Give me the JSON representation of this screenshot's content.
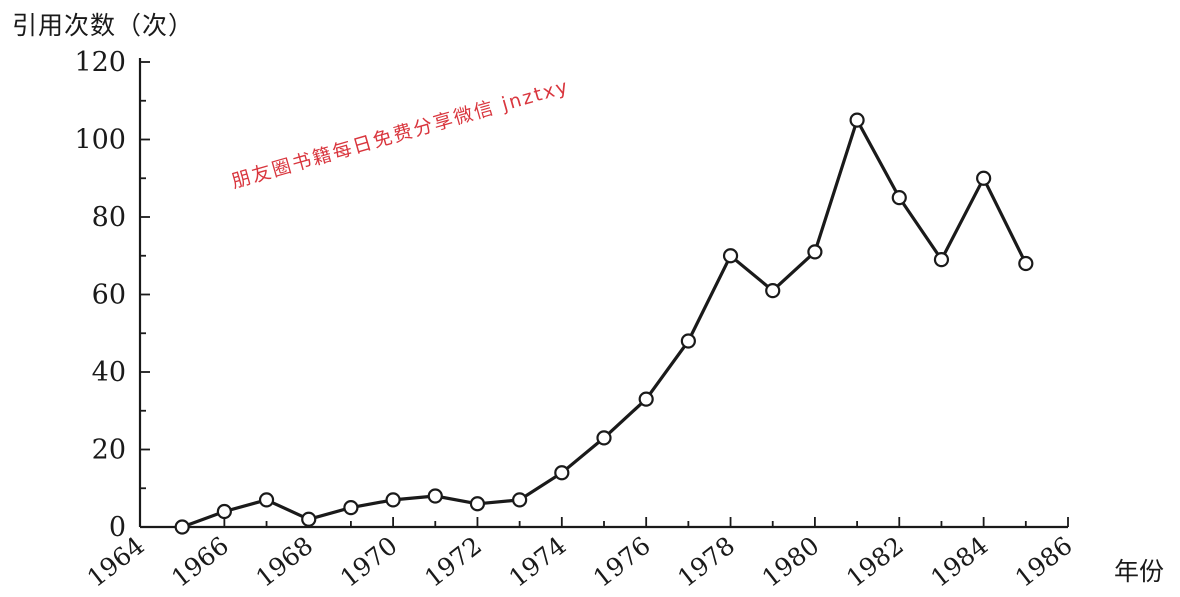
{
  "chart_data": {
    "type": "line",
    "title": "",
    "ylabel": "引用次数（次）",
    "xlabel": "年份",
    "xlim": [
      1964,
      1986
    ],
    "ylim": [
      0,
      120
    ],
    "x_ticks": [
      "1964",
      "1966",
      "1968",
      "1970",
      "1972",
      "1974",
      "1976",
      "1978",
      "1980",
      "1982",
      "1984",
      "1986"
    ],
    "y_ticks": [
      "0",
      "20",
      "40",
      "60",
      "80",
      "100",
      "120"
    ],
    "grid": false,
    "marker": "open-circle",
    "line_color": "#1a1a1a",
    "series": [
      {
        "x": [
          1965,
          1966,
          1967,
          1968,
          1969,
          1970,
          1971,
          1972,
          1973,
          1974,
          1975,
          1976,
          1977,
          1978,
          1979,
          1980,
          1981,
          1982,
          1983,
          1984,
          1985
        ],
        "values": [
          0,
          4,
          7,
          2,
          5,
          7,
          8,
          6,
          7,
          14,
          23,
          33,
          48,
          70,
          61,
          71,
          105,
          85,
          69,
          90,
          68
        ]
      }
    ]
  },
  "watermark": {
    "text": "朋友圈书籍每日免费分享微信 jnztxy",
    "color": "#d9363e"
  }
}
